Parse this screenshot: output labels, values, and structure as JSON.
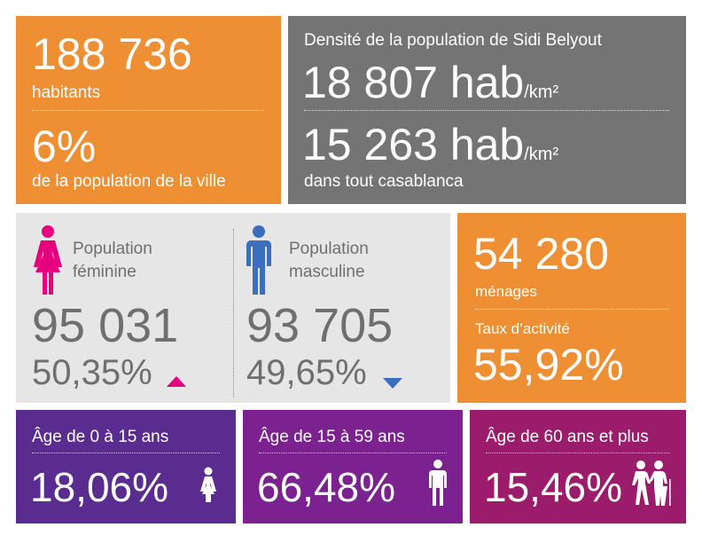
{
  "population": {
    "total": "188 736",
    "total_label": "habitants",
    "share": "6%",
    "share_label": "de la population de la ville"
  },
  "density": {
    "title": "Densité de la population de Sidi Belyout",
    "local_value": "18 807 hab",
    "local_unit": "/km²",
    "city_value": "15 263 hab",
    "city_unit": "/km²",
    "city_label": "dans tout casablanca"
  },
  "gender": {
    "female_label_1": "Population",
    "female_label_2": "féminine",
    "female_count": "95 031",
    "female_pct": "50,35%",
    "male_label_1": "Population",
    "male_label_2": "masculine",
    "male_count": "93 705",
    "male_pct": "49,65%",
    "female_color": "#e6007e",
    "male_color": "#3a6fbf",
    "female_icon": "woman-icon",
    "male_icon": "man-icon",
    "up_icon": "triangle-up-icon",
    "down_icon": "triangle-down-icon"
  },
  "households": {
    "count": "54 280",
    "count_label": "ménages",
    "activity_label": "Taux d’activité",
    "activity_rate": "55,92%"
  },
  "age_groups": [
    {
      "title": "Âge de 0 à 15 ans",
      "pct": "18,06%",
      "icon": "child-icon",
      "color": "#5b2c8f"
    },
    {
      "title": "Âge de 15 à 59 ans",
      "pct": "66,48%",
      "icon": "adult-icon",
      "color": "#7b2290"
    },
    {
      "title": "Âge de 60 ans et plus",
      "pct": "15,46%",
      "icon": "elderly-couple-icon",
      "color": "#9a1c6b"
    }
  ]
}
